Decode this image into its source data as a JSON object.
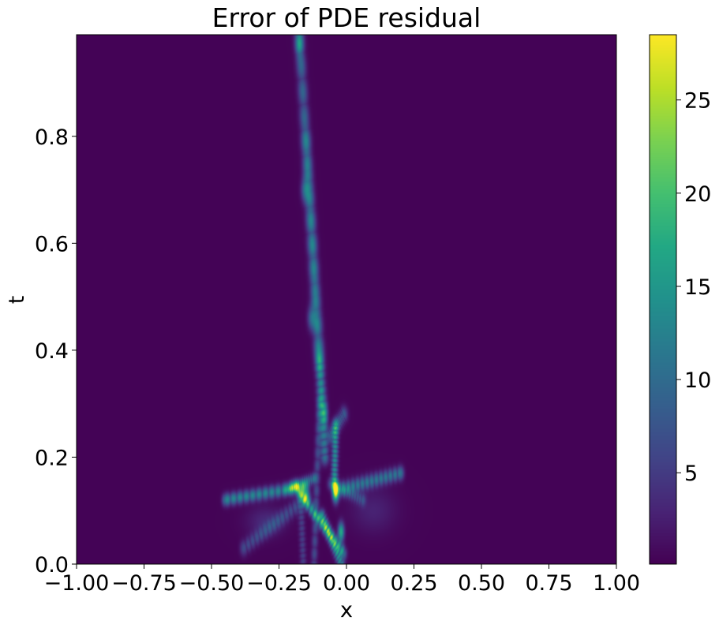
{
  "chart_data": {
    "type": "heatmap",
    "title": "Error of PDE residual",
    "xlabel": "x",
    "ylabel": "t",
    "xlim": [
      -1.0,
      1.0
    ],
    "ylim": [
      0.0,
      0.99
    ],
    "x_ticks": [
      -1.0,
      -0.75,
      -0.5,
      -0.25,
      0.0,
      0.25,
      0.5,
      0.75,
      1.0
    ],
    "x_tick_labels": [
      "−1.00",
      "−0.75",
      "−0.50",
      "−0.25",
      "0.00",
      "0.25",
      "0.50",
      "0.75",
      "1.00"
    ],
    "y_ticks": [
      0.0,
      0.2,
      0.4,
      0.6,
      0.8
    ],
    "y_tick_labels": [
      "0.0",
      "0.2",
      "0.4",
      "0.6",
      "0.8"
    ],
    "colorbar": {
      "colormap": "viridis",
      "range": [
        0.1,
        28.5
      ],
      "ticks": [
        5,
        10,
        15,
        20,
        25
      ],
      "tick_labels": [
        "5",
        "10",
        "15",
        "20",
        "25"
      ]
    },
    "grid": false,
    "background_value": 0.3,
    "features": [
      {
        "kind": "line",
        "x0": -0.175,
        "t0": 0.99,
        "x1": -0.1,
        "t1": 0.38,
        "peak": 9,
        "width": 0.012
      },
      {
        "kind": "line",
        "x0": -0.1,
        "t0": 0.38,
        "x1": -0.08,
        "t1": 0.2,
        "peak": 11,
        "width": 0.01
      },
      {
        "kind": "line",
        "x0": -0.15,
        "t0": 0.8,
        "x1": -0.09,
        "t1": 0.3,
        "peak": 4,
        "width": 0.012
      },
      {
        "kind": "line",
        "x0": -0.06,
        "t0": 0.24,
        "x1": -0.01,
        "t1": 0.28,
        "peak": 8,
        "width": 0.01
      },
      {
        "kind": "line",
        "x0": -0.04,
        "t0": 0.26,
        "x1": -0.045,
        "t1": 0.15,
        "peak": 14,
        "width": 0.008
      },
      {
        "kind": "line",
        "x0": -0.1,
        "t0": 0.3,
        "x1": -0.12,
        "t1": 0.0,
        "peak": 6,
        "width": 0.008
      },
      {
        "kind": "line",
        "x0": -0.17,
        "t0": 0.13,
        "x1": -0.16,
        "t1": 0.0,
        "peak": 5,
        "width": 0.008
      },
      {
        "kind": "line",
        "x0": -0.45,
        "t0": 0.12,
        "x1": -0.15,
        "t1": 0.145,
        "peak": 13,
        "width": 0.008
      },
      {
        "kind": "line",
        "x0": -0.02,
        "t0": 0.14,
        "x1": 0.2,
        "t1": 0.17,
        "peak": 11,
        "width": 0.009
      },
      {
        "kind": "line",
        "x0": -0.06,
        "t0": 0.15,
        "x1": 0.06,
        "t1": 0.12,
        "peak": 6,
        "width": 0.008
      },
      {
        "kind": "line",
        "x0": -0.17,
        "t0": 0.13,
        "x1": -0.01,
        "t1": 0.02,
        "peak": 15,
        "width": 0.008
      },
      {
        "kind": "line",
        "x0": -0.09,
        "t0": 0.09,
        "x1": -0.02,
        "t1": 0.0,
        "peak": 13,
        "width": 0.008
      },
      {
        "kind": "line",
        "x0": -0.38,
        "t0": 0.03,
        "x1": -0.18,
        "t1": 0.11,
        "peak": 6,
        "width": 0.01
      },
      {
        "kind": "line",
        "x0": -0.22,
        "t0": 0.14,
        "x1": -0.12,
        "t1": 0.16,
        "peak": 10,
        "width": 0.007
      },
      {
        "kind": "spot",
        "x": -0.04,
        "t": 0.135,
        "peak": 28.5,
        "sx": 0.008,
        "st": 0.012
      },
      {
        "kind": "spot",
        "x": -0.15,
        "t": 0.125,
        "peak": 16,
        "sx": 0.01,
        "st": 0.01
      },
      {
        "kind": "spot",
        "x": -0.02,
        "t": 0.06,
        "peak": 17,
        "sx": 0.008,
        "st": 0.012
      },
      {
        "kind": "spot",
        "x": -0.08,
        "t": 0.28,
        "peak": 10,
        "sx": 0.008,
        "st": 0.015
      },
      {
        "kind": "spot",
        "x": -0.19,
        "t": 0.145,
        "peak": 10,
        "sx": 0.01,
        "st": 0.008
      },
      {
        "kind": "spot",
        "x": -0.13,
        "t": 0.46,
        "peak": 8,
        "sx": 0.01,
        "st": 0.015
      },
      {
        "kind": "spot",
        "x": -0.155,
        "t": 0.7,
        "peak": 7,
        "sx": 0.01,
        "st": 0.015
      },
      {
        "kind": "spot",
        "x": -0.175,
        "t": 0.97,
        "peak": 8,
        "sx": 0.01,
        "st": 0.015
      },
      {
        "kind": "spot",
        "x": -0.3,
        "t": 0.08,
        "peak": 3,
        "sx": 0.05,
        "st": 0.02
      },
      {
        "kind": "spot",
        "x": 0.1,
        "t": 0.1,
        "peak": 2.5,
        "sx": 0.06,
        "st": 0.03
      }
    ]
  }
}
